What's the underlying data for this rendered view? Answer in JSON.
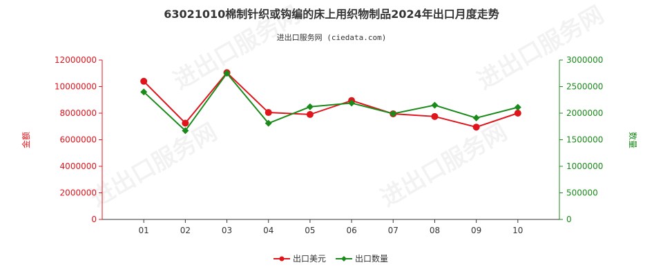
{
  "chart_data": {
    "type": "line",
    "title": "63021010棉制针织或钩编的床上用织物制品2024年出口月度走势",
    "subtitle": "进出口服务网 (ciedata.com)",
    "categories": [
      "01",
      "02",
      "03",
      "04",
      "05",
      "06",
      "07",
      "08",
      "09",
      "10"
    ],
    "series": [
      {
        "name": "出口美元",
        "axis": "left",
        "color": "#e0141b",
        "values": [
          10400000,
          7250000,
          11050000,
          8050000,
          7900000,
          8950000,
          7950000,
          7750000,
          6950000,
          8000000
        ]
      },
      {
        "name": "出口数量",
        "axis": "right",
        "color": "#1a8a1a",
        "values": [
          2400000,
          1670000,
          2750000,
          1810000,
          2120000,
          2190000,
          1990000,
          2150000,
          1910000,
          2110000
        ]
      }
    ],
    "y_left": {
      "label": "金额",
      "ylim": [
        0,
        12000000
      ],
      "ticks": [
        "0",
        "2000000",
        "4000000",
        "6000000",
        "8000000",
        "10000000",
        "12000000"
      ]
    },
    "y_right": {
      "label": "数量",
      "ylim": [
        0,
        3000000
      ],
      "ticks": [
        "0",
        "500000",
        "1000000",
        "1500000",
        "2000000",
        "2500000",
        "3000000"
      ]
    },
    "grid": false,
    "legend_position": "bottom-center",
    "watermark": "进出口服务网"
  }
}
